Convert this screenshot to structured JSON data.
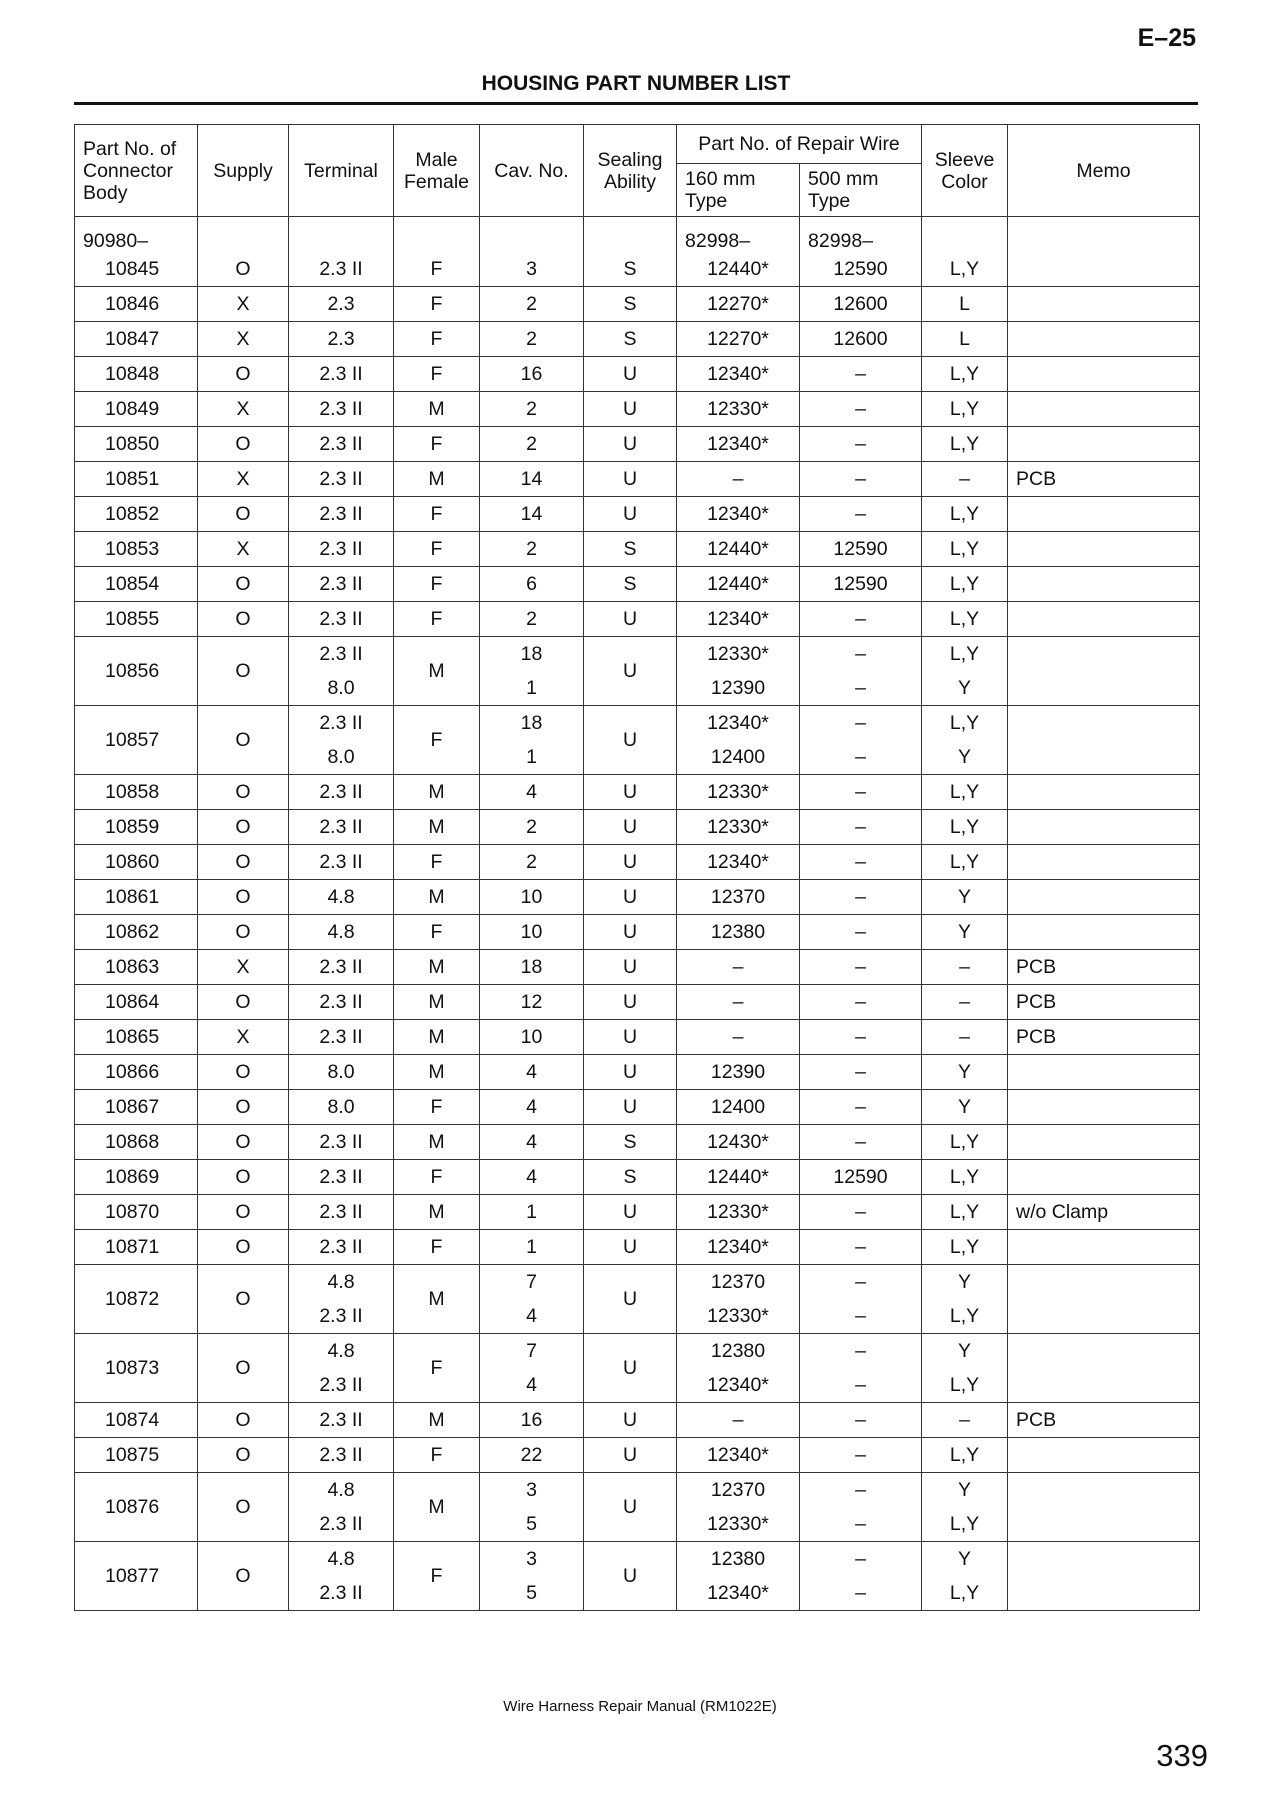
{
  "page": {
    "section": "E–25",
    "title": "HOUSING PART NUMBER LIST",
    "footer": "Wire Harness Repair Manual (RM1022E)",
    "page_number": "339"
  },
  "headers": {
    "part": "Part No. of Connector Body",
    "supply": "Supply",
    "terminal": "Terminal",
    "mf": "Male Female",
    "cav": "Cav. No.",
    "sealing": "Sealing Ability",
    "repair": "Part No. of Repair Wire",
    "w160": "160 mm Type",
    "w500": "500 mm Type",
    "sleeve": "Sleeve Color",
    "memo": "Memo"
  },
  "prefix": {
    "part": "90980–",
    "w160": "82998–",
    "w500": "82998–"
  },
  "rows": [
    {
      "part": "10845",
      "supply": "O",
      "terminal": [
        "2.3 II"
      ],
      "mf": "F",
      "cav": [
        "3"
      ],
      "sealing": "S",
      "w160": [
        "12440*"
      ],
      "w500": [
        "12590"
      ],
      "sleeve": [
        "L,Y"
      ],
      "memo": ""
    },
    {
      "part": "10846",
      "supply": "X",
      "terminal": [
        "2.3"
      ],
      "mf": "F",
      "cav": [
        "2"
      ],
      "sealing": "S",
      "w160": [
        "12270*"
      ],
      "w500": [
        "12600"
      ],
      "sleeve": [
        "L"
      ],
      "memo": ""
    },
    {
      "part": "10847",
      "supply": "X",
      "terminal": [
        "2.3"
      ],
      "mf": "F",
      "cav": [
        "2"
      ],
      "sealing": "S",
      "w160": [
        "12270*"
      ],
      "w500": [
        "12600"
      ],
      "sleeve": [
        "L"
      ],
      "memo": ""
    },
    {
      "part": "10848",
      "supply": "O",
      "terminal": [
        "2.3 II"
      ],
      "mf": "F",
      "cav": [
        "16"
      ],
      "sealing": "U",
      "w160": [
        "12340*"
      ],
      "w500": [
        "–"
      ],
      "sleeve": [
        "L,Y"
      ],
      "memo": ""
    },
    {
      "part": "10849",
      "supply": "X",
      "terminal": [
        "2.3 II"
      ],
      "mf": "M",
      "cav": [
        "2"
      ],
      "sealing": "U",
      "w160": [
        "12330*"
      ],
      "w500": [
        "–"
      ],
      "sleeve": [
        "L,Y"
      ],
      "memo": ""
    },
    {
      "part": "10850",
      "supply": "O",
      "terminal": [
        "2.3 II"
      ],
      "mf": "F",
      "cav": [
        "2"
      ],
      "sealing": "U",
      "w160": [
        "12340*"
      ],
      "w500": [
        "–"
      ],
      "sleeve": [
        "L,Y"
      ],
      "memo": ""
    },
    {
      "part": "10851",
      "supply": "X",
      "terminal": [
        "2.3 II"
      ],
      "mf": "M",
      "cav": [
        "14"
      ],
      "sealing": "U",
      "w160": [
        "–"
      ],
      "w500": [
        "–"
      ],
      "sleeve": [
        "–"
      ],
      "memo": "PCB"
    },
    {
      "part": "10852",
      "supply": "O",
      "terminal": [
        "2.3 II"
      ],
      "mf": "F",
      "cav": [
        "14"
      ],
      "sealing": "U",
      "w160": [
        "12340*"
      ],
      "w500": [
        "–"
      ],
      "sleeve": [
        "L,Y"
      ],
      "memo": ""
    },
    {
      "part": "10853",
      "supply": "X",
      "terminal": [
        "2.3 II"
      ],
      "mf": "F",
      "cav": [
        "2"
      ],
      "sealing": "S",
      "w160": [
        "12440*"
      ],
      "w500": [
        "12590"
      ],
      "sleeve": [
        "L,Y"
      ],
      "memo": ""
    },
    {
      "part": "10854",
      "supply": "O",
      "terminal": [
        "2.3 II"
      ],
      "mf": "F",
      "cav": [
        "6"
      ],
      "sealing": "S",
      "w160": [
        "12440*"
      ],
      "w500": [
        "12590"
      ],
      "sleeve": [
        "L,Y"
      ],
      "memo": ""
    },
    {
      "part": "10855",
      "supply": "O",
      "terminal": [
        "2.3 II"
      ],
      "mf": "F",
      "cav": [
        "2"
      ],
      "sealing": "U",
      "w160": [
        "12340*"
      ],
      "w500": [
        "–"
      ],
      "sleeve": [
        "L,Y"
      ],
      "memo": ""
    },
    {
      "part": "10856",
      "supply": "O",
      "terminal": [
        "2.3 II",
        "8.0"
      ],
      "mf": "M",
      "cav": [
        "18",
        "1"
      ],
      "sealing": "U",
      "w160": [
        "12330*",
        "12390"
      ],
      "w500": [
        "–",
        "–"
      ],
      "sleeve": [
        "L,Y",
        "Y"
      ],
      "memo": ""
    },
    {
      "part": "10857",
      "supply": "O",
      "terminal": [
        "2.3 II",
        "8.0"
      ],
      "mf": "F",
      "cav": [
        "18",
        "1"
      ],
      "sealing": "U",
      "w160": [
        "12340*",
        "12400"
      ],
      "w500": [
        "–",
        "–"
      ],
      "sleeve": [
        "L,Y",
        "Y"
      ],
      "memo": ""
    },
    {
      "part": "10858",
      "supply": "O",
      "terminal": [
        "2.3 II"
      ],
      "mf": "M",
      "cav": [
        "4"
      ],
      "sealing": "U",
      "w160": [
        "12330*"
      ],
      "w500": [
        "–"
      ],
      "sleeve": [
        "L,Y"
      ],
      "memo": ""
    },
    {
      "part": "10859",
      "supply": "O",
      "terminal": [
        "2.3 II"
      ],
      "mf": "M",
      "cav": [
        "2"
      ],
      "sealing": "U",
      "w160": [
        "12330*"
      ],
      "w500": [
        "–"
      ],
      "sleeve": [
        "L,Y"
      ],
      "memo": ""
    },
    {
      "part": "10860",
      "supply": "O",
      "terminal": [
        "2.3 II"
      ],
      "mf": "F",
      "cav": [
        "2"
      ],
      "sealing": "U",
      "w160": [
        "12340*"
      ],
      "w500": [
        "–"
      ],
      "sleeve": [
        "L,Y"
      ],
      "memo": ""
    },
    {
      "part": "10861",
      "supply": "O",
      "terminal": [
        "4.8"
      ],
      "mf": "M",
      "cav": [
        "10"
      ],
      "sealing": "U",
      "w160": [
        "12370"
      ],
      "w500": [
        "–"
      ],
      "sleeve": [
        "Y"
      ],
      "memo": ""
    },
    {
      "part": "10862",
      "supply": "O",
      "terminal": [
        "4.8"
      ],
      "mf": "F",
      "cav": [
        "10"
      ],
      "sealing": "U",
      "w160": [
        "12380"
      ],
      "w500": [
        "–"
      ],
      "sleeve": [
        "Y"
      ],
      "memo": ""
    },
    {
      "part": "10863",
      "supply": "X",
      "terminal": [
        "2.3 II"
      ],
      "mf": "M",
      "cav": [
        "18"
      ],
      "sealing": "U",
      "w160": [
        "–"
      ],
      "w500": [
        "–"
      ],
      "sleeve": [
        "–"
      ],
      "memo": "PCB"
    },
    {
      "part": "10864",
      "supply": "O",
      "terminal": [
        "2.3 II"
      ],
      "mf": "M",
      "cav": [
        "12"
      ],
      "sealing": "U",
      "w160": [
        "–"
      ],
      "w500": [
        "–"
      ],
      "sleeve": [
        "–"
      ],
      "memo": "PCB"
    },
    {
      "part": "10865",
      "supply": "X",
      "terminal": [
        "2.3 II"
      ],
      "mf": "M",
      "cav": [
        "10"
      ],
      "sealing": "U",
      "w160": [
        "–"
      ],
      "w500": [
        "–"
      ],
      "sleeve": [
        "–"
      ],
      "memo": "PCB"
    },
    {
      "part": "10866",
      "supply": "O",
      "terminal": [
        "8.0"
      ],
      "mf": "M",
      "cav": [
        "4"
      ],
      "sealing": "U",
      "w160": [
        "12390"
      ],
      "w500": [
        "–"
      ],
      "sleeve": [
        "Y"
      ],
      "memo": ""
    },
    {
      "part": "10867",
      "supply": "O",
      "terminal": [
        "8.0"
      ],
      "mf": "F",
      "cav": [
        "4"
      ],
      "sealing": "U",
      "w160": [
        "12400"
      ],
      "w500": [
        "–"
      ],
      "sleeve": [
        "Y"
      ],
      "memo": ""
    },
    {
      "part": "10868",
      "supply": "O",
      "terminal": [
        "2.3 II"
      ],
      "mf": "M",
      "cav": [
        "4"
      ],
      "sealing": "S",
      "w160": [
        "12430*"
      ],
      "w500": [
        "–"
      ],
      "sleeve": [
        "L,Y"
      ],
      "memo": ""
    },
    {
      "part": "10869",
      "supply": "O",
      "terminal": [
        "2.3 II"
      ],
      "mf": "F",
      "cav": [
        "4"
      ],
      "sealing": "S",
      "w160": [
        "12440*"
      ],
      "w500": [
        "12590"
      ],
      "sleeve": [
        "L,Y"
      ],
      "memo": ""
    },
    {
      "part": "10870",
      "supply": "O",
      "terminal": [
        "2.3 II"
      ],
      "mf": "M",
      "cav": [
        "1"
      ],
      "sealing": "U",
      "w160": [
        "12330*"
      ],
      "w500": [
        "–"
      ],
      "sleeve": [
        "L,Y"
      ],
      "memo": "w/o Clamp"
    },
    {
      "part": "10871",
      "supply": "O",
      "terminal": [
        "2.3 II"
      ],
      "mf": "F",
      "cav": [
        "1"
      ],
      "sealing": "U",
      "w160": [
        "12340*"
      ],
      "w500": [
        "–"
      ],
      "sleeve": [
        "L,Y"
      ],
      "memo": ""
    },
    {
      "part": "10872",
      "supply": "O",
      "terminal": [
        "4.8",
        "2.3 II"
      ],
      "mf": "M",
      "cav": [
        "7",
        "4"
      ],
      "sealing": "U",
      "w160": [
        "12370",
        "12330*"
      ],
      "w500": [
        "–",
        "–"
      ],
      "sleeve": [
        "Y",
        "L,Y"
      ],
      "memo": ""
    },
    {
      "part": "10873",
      "supply": "O",
      "terminal": [
        "4.8",
        "2.3 II"
      ],
      "mf": "F",
      "cav": [
        "7",
        "4"
      ],
      "sealing": "U",
      "w160": [
        "12380",
        "12340*"
      ],
      "w500": [
        "–",
        "–"
      ],
      "sleeve": [
        "Y",
        "L,Y"
      ],
      "memo": ""
    },
    {
      "part": "10874",
      "supply": "O",
      "terminal": [
        "2.3 II"
      ],
      "mf": "M",
      "cav": [
        "16"
      ],
      "sealing": "U",
      "w160": [
        "–"
      ],
      "w500": [
        "–"
      ],
      "sleeve": [
        "–"
      ],
      "memo": "PCB"
    },
    {
      "part": "10875",
      "supply": "O",
      "terminal": [
        "2.3 II"
      ],
      "mf": "F",
      "cav": [
        "22"
      ],
      "sealing": "U",
      "w160": [
        "12340*"
      ],
      "w500": [
        "–"
      ],
      "sleeve": [
        "L,Y"
      ],
      "memo": ""
    },
    {
      "part": "10876",
      "supply": "O",
      "terminal": [
        "4.8",
        "2.3 II"
      ],
      "mf": "M",
      "cav": [
        "3",
        "5"
      ],
      "sealing": "U",
      "w160": [
        "12370",
        "12330*"
      ],
      "w500": [
        "–",
        "–"
      ],
      "sleeve": [
        "Y",
        "L,Y"
      ],
      "memo": ""
    },
    {
      "part": "10877",
      "supply": "O",
      "terminal": [
        "4.8",
        "2.3 II"
      ],
      "mf": "F",
      "cav": [
        "3",
        "5"
      ],
      "sealing": "U",
      "w160": [
        "12380",
        "12340*"
      ],
      "w500": [
        "–",
        "–"
      ],
      "sleeve": [
        "Y",
        "L,Y"
      ],
      "memo": ""
    }
  ]
}
